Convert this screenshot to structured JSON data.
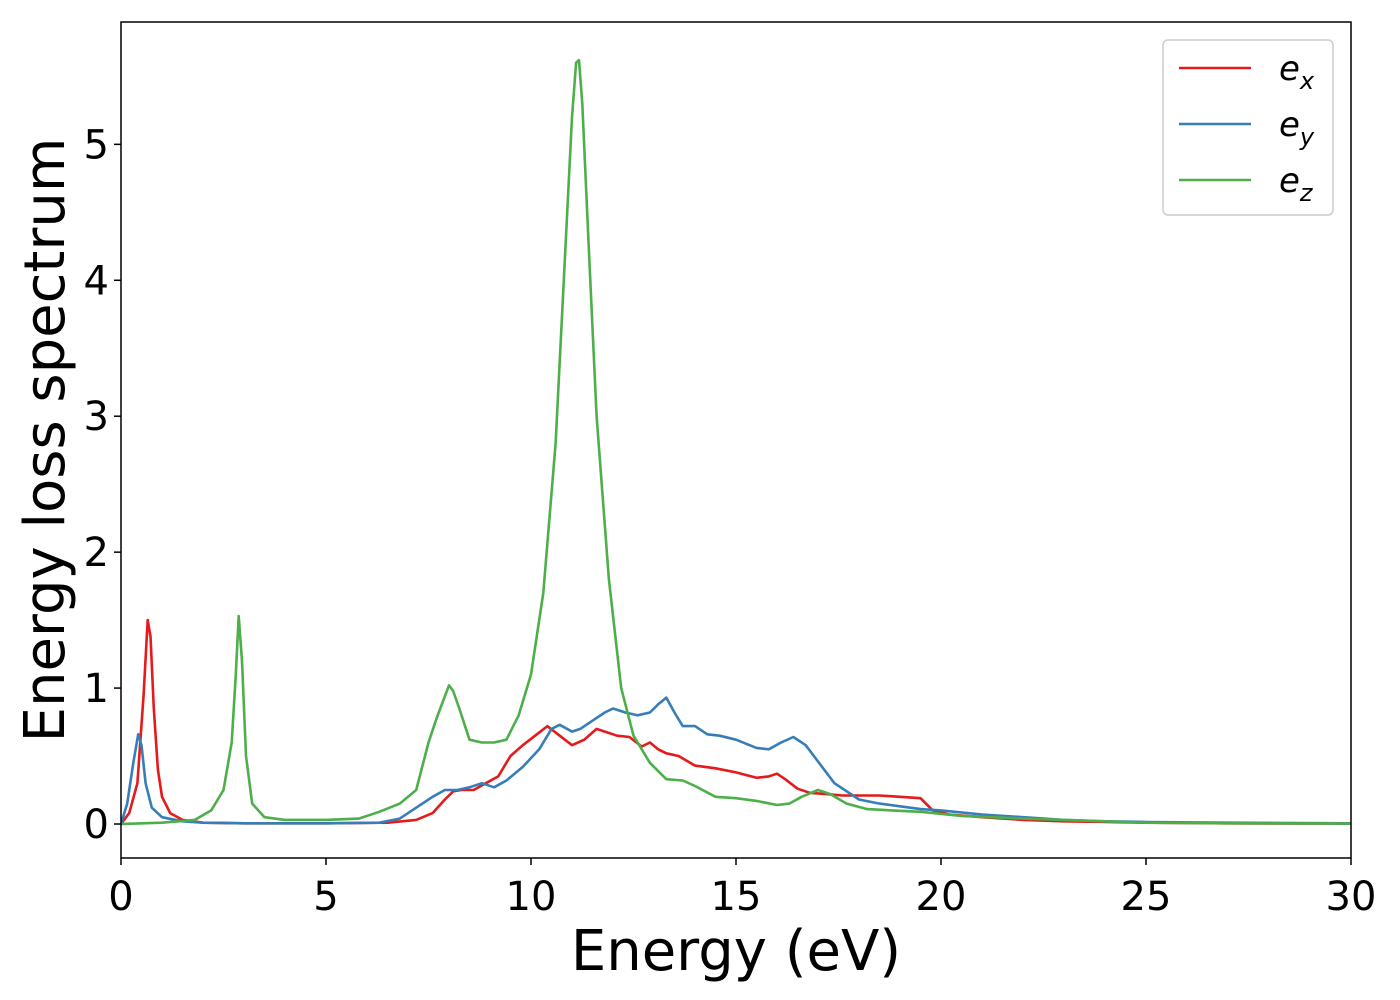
{
  "chart_data": {
    "type": "line",
    "xlabel": "Energy (eV)",
    "ylabel": "Energy loss spectrum",
    "xlim": [
      0,
      30
    ],
    "ylim": [
      -0.25,
      5.9
    ],
    "xticks": [
      0,
      5,
      10,
      15,
      20,
      25,
      30
    ],
    "yticks": [
      0,
      1,
      2,
      3,
      4,
      5
    ],
    "grid": false,
    "legend_position": "top-right",
    "series": [
      {
        "name": "e",
        "subscript": "x",
        "color": "#e41a1c",
        "x": [
          0,
          0.2,
          0.4,
          0.55,
          0.65,
          0.72,
          0.8,
          0.9,
          1.0,
          1.2,
          1.5,
          2.0,
          3.0,
          5.0,
          6.5,
          7.2,
          7.6,
          7.9,
          8.1,
          8.3,
          8.6,
          8.9,
          9.2,
          9.5,
          9.8,
          10.1,
          10.4,
          10.7,
          11.0,
          11.3,
          11.6,
          11.8,
          12.1,
          12.4,
          12.7,
          12.9,
          13.1,
          13.3,
          13.6,
          14.0,
          14.5,
          15.0,
          15.5,
          15.8,
          16.0,
          16.2,
          16.5,
          16.8,
          17.2,
          17.6,
          18.0,
          18.5,
          19.0,
          19.5,
          19.8,
          20.2,
          21,
          22,
          23,
          24,
          25,
          27,
          30
        ],
        "y": [
          0,
          0.08,
          0.3,
          0.95,
          1.5,
          1.38,
          0.85,
          0.4,
          0.2,
          0.08,
          0.03,
          0.01,
          0.005,
          0.005,
          0.01,
          0.03,
          0.08,
          0.18,
          0.24,
          0.25,
          0.25,
          0.3,
          0.35,
          0.5,
          0.58,
          0.65,
          0.72,
          0.65,
          0.58,
          0.62,
          0.7,
          0.68,
          0.65,
          0.64,
          0.57,
          0.6,
          0.55,
          0.52,
          0.5,
          0.43,
          0.41,
          0.38,
          0.34,
          0.35,
          0.37,
          0.33,
          0.26,
          0.23,
          0.22,
          0.21,
          0.21,
          0.21,
          0.2,
          0.19,
          0.1,
          0.07,
          0.05,
          0.03,
          0.02,
          0.015,
          0.01,
          0.005,
          0.003
        ]
      },
      {
        "name": "e",
        "subscript": "y",
        "color": "#377eb8",
        "x": [
          0,
          0.15,
          0.3,
          0.42,
          0.5,
          0.6,
          0.75,
          1.0,
          1.5,
          2.0,
          3.0,
          5.0,
          6.3,
          6.8,
          7.2,
          7.6,
          7.9,
          8.2,
          8.5,
          8.8,
          9.1,
          9.4,
          9.8,
          10.2,
          10.5,
          10.7,
          11.0,
          11.2,
          11.5,
          11.8,
          12.0,
          12.3,
          12.6,
          12.9,
          13.1,
          13.3,
          13.5,
          13.7,
          14.0,
          14.3,
          14.6,
          15.0,
          15.5,
          15.8,
          16.1,
          16.4,
          16.7,
          17.0,
          17.4,
          18.0,
          18.5,
          19.0,
          19.5,
          20.0,
          21,
          22,
          23,
          24,
          25,
          27,
          30
        ],
        "y": [
          0,
          0.15,
          0.45,
          0.66,
          0.58,
          0.3,
          0.12,
          0.05,
          0.02,
          0.01,
          0.005,
          0.005,
          0.01,
          0.04,
          0.12,
          0.2,
          0.25,
          0.25,
          0.27,
          0.3,
          0.27,
          0.32,
          0.42,
          0.55,
          0.7,
          0.73,
          0.68,
          0.7,
          0.76,
          0.82,
          0.85,
          0.82,
          0.8,
          0.82,
          0.88,
          0.93,
          0.82,
          0.72,
          0.72,
          0.66,
          0.65,
          0.62,
          0.56,
          0.55,
          0.6,
          0.64,
          0.58,
          0.46,
          0.3,
          0.18,
          0.15,
          0.13,
          0.11,
          0.1,
          0.07,
          0.05,
          0.03,
          0.02,
          0.015,
          0.01,
          0.005
        ]
      },
      {
        "name": "e",
        "subscript": "z",
        "color": "#4daf4a",
        "x": [
          0,
          1.0,
          1.8,
          2.2,
          2.5,
          2.7,
          2.8,
          2.87,
          2.95,
          3.05,
          3.2,
          3.5,
          4.0,
          5.0,
          5.8,
          6.3,
          6.8,
          7.2,
          7.5,
          7.7,
          7.85,
          8.0,
          8.1,
          8.25,
          8.5,
          8.8,
          9.1,
          9.4,
          9.7,
          10.0,
          10.3,
          10.6,
          10.8,
          11.0,
          11.1,
          11.17,
          11.25,
          11.4,
          11.6,
          11.9,
          12.2,
          12.5,
          12.9,
          13.3,
          13.7,
          14.0,
          14.5,
          15.0,
          15.5,
          16.0,
          16.3,
          16.6,
          17.0,
          17.3,
          17.7,
          18.2,
          18.8,
          19.5,
          20.5,
          22,
          23,
          25,
          27,
          30
        ],
        "y": [
          0,
          0.01,
          0.03,
          0.1,
          0.25,
          0.6,
          1.1,
          1.53,
          1.2,
          0.5,
          0.15,
          0.05,
          0.03,
          0.03,
          0.04,
          0.09,
          0.15,
          0.25,
          0.6,
          0.78,
          0.9,
          1.02,
          0.98,
          0.85,
          0.62,
          0.6,
          0.6,
          0.62,
          0.8,
          1.1,
          1.7,
          2.8,
          4.0,
          5.2,
          5.6,
          5.62,
          5.3,
          4.3,
          3.0,
          1.8,
          1.0,
          0.65,
          0.45,
          0.33,
          0.32,
          0.28,
          0.2,
          0.19,
          0.17,
          0.14,
          0.15,
          0.2,
          0.25,
          0.22,
          0.15,
          0.11,
          0.1,
          0.09,
          0.06,
          0.04,
          0.03,
          0.01,
          0.005,
          0.003
        ]
      }
    ]
  }
}
